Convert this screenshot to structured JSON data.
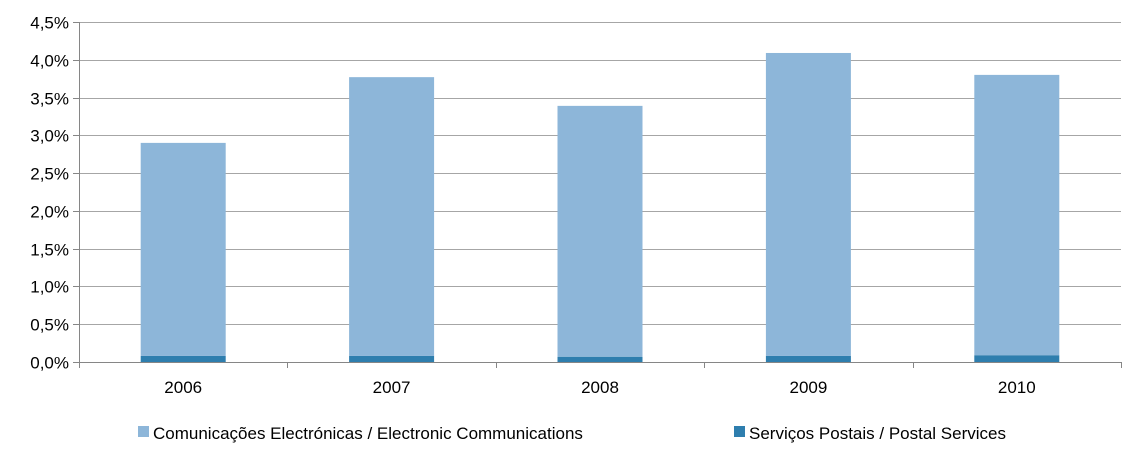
{
  "chart_data": {
    "type": "bar",
    "stacked": true,
    "categories": [
      "2006",
      "2007",
      "2008",
      "2009",
      "2010"
    ],
    "series": [
      {
        "name": "Serviços Postais / Postal Services",
        "color": "#2E7EAE",
        "values": [
          0.08,
          0.08,
          0.07,
          0.08,
          0.09
        ]
      },
      {
        "name": "Comunicações Electrónicas / Electronic Communications",
        "color": "#8DB6D9",
        "values": [
          2.82,
          3.69,
          3.32,
          4.01,
          3.71
        ]
      }
    ],
    "ylim": [
      0,
      4.5
    ],
    "yticks": [
      "0,0%",
      "0,5%",
      "1,0%",
      "1,5%",
      "2,0%",
      "2,5%",
      "3,0%",
      "3,5%",
      "4,0%",
      "4,5%"
    ],
    "grid": true,
    "legend_position": "bottom",
    "legend_order": [
      "Comunicações Electrónicas / Electronic Communications",
      "Serviços Postais / Postal Services"
    ],
    "gridline_color": "#A6A6A6",
    "axis_color": "#868686"
  }
}
